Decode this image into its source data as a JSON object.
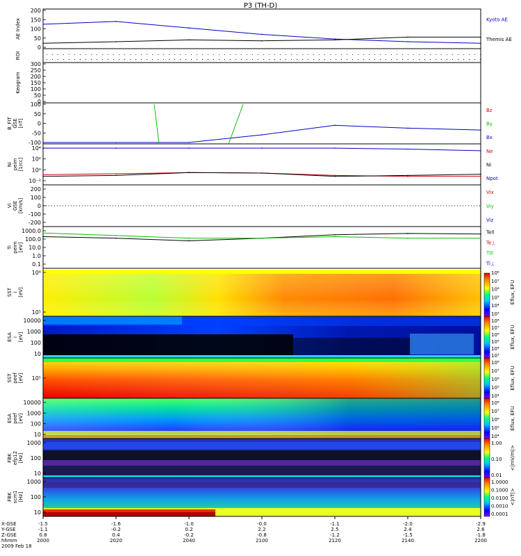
{
  "title": "P3 (TH-D)",
  "panels": [
    {
      "id": "ae",
      "ylabel": [
        "AE Index"
      ],
      "yticks": [
        "200",
        "150",
        "100",
        "50",
        "0"
      ],
      "legend": [
        {
          "text": "Kyoto AE",
          "color": "#0000c8"
        },
        {
          "text": "Themis AE",
          "color": "#000000"
        }
      ]
    },
    {
      "id": "roi",
      "ylabel": [
        "ROI"
      ],
      "yticks": [],
      "legend": []
    },
    {
      "id": "keogram",
      "ylabel": [
        "Keogram"
      ],
      "yticks": [
        "300",
        "250",
        "200",
        "150",
        "100",
        "50",
        "0"
      ],
      "legend": []
    },
    {
      "id": "bfit",
      "ylabel": [
        "B_FIT",
        "GSE",
        "[nT]"
      ],
      "yticks": [
        "100",
        "50",
        "0",
        "-50",
        "-100"
      ],
      "legend": [
        {
          "text": "Bz",
          "color": "#d00000"
        },
        {
          "text": "By",
          "color": "#00c000"
        },
        {
          "text": "Bx",
          "color": "#0000c8"
        }
      ]
    },
    {
      "id": "density",
      "ylabel": [
        "Ni",
        "peim",
        "[1/cc]"
      ],
      "yticks": [
        "10⁴",
        "10²",
        "10⁰",
        "10⁻²"
      ],
      "legend": [
        {
          "text": "Ne",
          "color": "#d00000"
        },
        {
          "text": "Ni",
          "color": "#000000"
        },
        {
          "text": "Npot",
          "color": "#0000c8"
        }
      ]
    },
    {
      "id": "velocity",
      "ylabel": [
        "Vi",
        "GSE",
        "[km/s]"
      ],
      "yticks": [
        "200",
        "100",
        "0",
        "-100",
        "-200"
      ],
      "legend": [
        {
          "text": "Vix",
          "color": "#d00000"
        },
        {
          "text": "Viy",
          "color": "#00c000"
        },
        {
          "text": "Viz",
          "color": "#0000c8"
        }
      ]
    },
    {
      "id": "temp",
      "ylabel": [
        "Ti",
        "peim",
        "[eV]"
      ],
      "yticks": [
        "1000.0",
        "100.0",
        "10.0",
        "1.0",
        "0.1"
      ],
      "legend": [
        {
          "text": "Tell",
          "color": "#000000"
        },
        {
          "text": "Te⊥",
          "color": "#d00000"
        },
        {
          "text": "Till",
          "color": "#00c000"
        },
        {
          "text": "Ti⊥",
          "color": "#0000c8"
        }
      ]
    },
    {
      "id": "sst_i",
      "ylabel": [
        "SST",
        "i",
        "[eV]"
      ],
      "yticks": [
        "10⁶",
        "10⁵"
      ],
      "cbar": [
        "10⁸",
        "10⁷",
        "10⁶",
        "10⁵",
        "10⁴",
        "10³"
      ],
      "cbar_label": "Eflux, EFU"
    },
    {
      "id": "esa_i",
      "ylabel": [
        "ESA",
        "i",
        "[eV]"
      ],
      "yticks": [
        "10000",
        "1000",
        "100",
        "10"
      ],
      "cbar": [
        "10⁸",
        "10⁷",
        "10⁶",
        "10⁵",
        "10⁴",
        "10³"
      ],
      "cbar_label": "Eflux, EFU"
    },
    {
      "id": "sst_e",
      "ylabel": [
        "SST",
        "peef",
        "[eV]"
      ],
      "yticks": [
        "10⁵"
      ],
      "cbar": [
        "10⁸",
        "10⁷",
        "10⁶",
        "10⁵",
        "10⁴"
      ],
      "cbar_label": "Eflux, EFU"
    },
    {
      "id": "esa_e",
      "ylabel": [
        "ESA",
        "peef",
        "[eV]"
      ],
      "yticks": [
        "10000",
        "1000",
        "100",
        "10"
      ],
      "cbar": [
        "10⁸",
        "10⁷",
        "10⁶",
        "10⁵",
        "10⁴"
      ],
      "cbar_label": "Eflux, EFU"
    },
    {
      "id": "fbk_e",
      "ylabel": [
        "FBK",
        "efp12",
        "[Hz]"
      ],
      "yticks": [
        "1000",
        "100",
        "10"
      ],
      "cbar": [
        "1.00",
        "0.10",
        "0.01"
      ],
      "cbar_label": "<|mV/m|>"
    },
    {
      "id": "fbk_b",
      "ylabel": [
        "FBK",
        "scm1",
        "[Hz]"
      ],
      "yticks": [
        "1000",
        "100",
        "10"
      ],
      "cbar": [
        "1.0000",
        "0.1000",
        "0.0100",
        "0.0010",
        "0.0001"
      ],
      "cbar_label": "<|nT|>"
    }
  ],
  "xaxis": {
    "row_labels": [
      "X-GSE",
      "Y-GSE",
      "Z-GSE",
      "hhmm",
      "2009 Feb 18"
    ],
    "columns": [
      [
        "-1.5",
        "-1.1",
        "0.8",
        "2000"
      ],
      [
        "-1.6",
        "-0.2",
        "0.4",
        "2020"
      ],
      [
        "-1.0",
        "0.2",
        "-0.2",
        "2040"
      ],
      [
        "-0.0",
        "2.2",
        "-0.8",
        "2100"
      ],
      [
        "-1.1",
        "2.5",
        "-1.2",
        "2120"
      ],
      [
        "-2.0",
        "2.4",
        "-1.5",
        "2140"
      ],
      [
        "-2.9",
        "2.6",
        "-1.8",
        "2200"
      ]
    ]
  },
  "chart_data": {
    "type": "line",
    "title": "P3 (TH-D)",
    "x": [
      "2000",
      "2020",
      "2040",
      "2100",
      "2120",
      "2140",
      "2200"
    ],
    "xlabel": "hhmm",
    "series_panels": [
      {
        "panel": "AE Index",
        "ylim": [
          0,
          200
        ],
        "series": [
          {
            "name": "Kyoto AE",
            "values": [
              125,
              140,
              105,
              70,
              45,
              30,
              22
            ]
          },
          {
            "name": "Themis AE",
            "values": [
              22,
              30,
              40,
              35,
              40,
              55,
              55
            ]
          }
        ]
      },
      {
        "panel": "B_FIT GSE [nT]",
        "ylim": [
          -100,
          100
        ],
        "series": [
          {
            "name": "Bx",
            "values": [
              -100,
              -100,
              -100,
              -60,
              -10,
              -25,
              -35
            ]
          }
        ]
      },
      {
        "panel": "Ni peim [1/cc]",
        "ylim": [
          "1e-2",
          "1e5"
        ],
        "scale": "log",
        "series": [
          {
            "name": "Npot",
            "values": [
              30000.0,
              30000.0,
              30000.0,
              30000.0,
              30000.0,
              20000.0,
              10000.0
            ]
          },
          {
            "name": "Ne",
            "values": [
              0.4,
              0.6,
              1,
              0.8,
              0.3,
              0.2,
              0.2
            ]
          },
          {
            "name": "Ni",
            "values": [
              0.2,
              0.3,
              1,
              0.8,
              0.2,
              0.3,
              0.5
            ]
          }
        ]
      },
      {
        "panel": "Ti peim [eV]",
        "ylim": [
          0.1,
          3000
        ],
        "scale": "log",
        "series": [
          {
            "name": "Tell",
            "values": [
              300,
              200,
              100,
              200,
              500,
              700,
              600
            ]
          },
          {
            "name": "Till",
            "values": [
              800,
              400,
              200,
              200,
              300,
              200,
              200
            ]
          }
        ]
      }
    ]
  }
}
